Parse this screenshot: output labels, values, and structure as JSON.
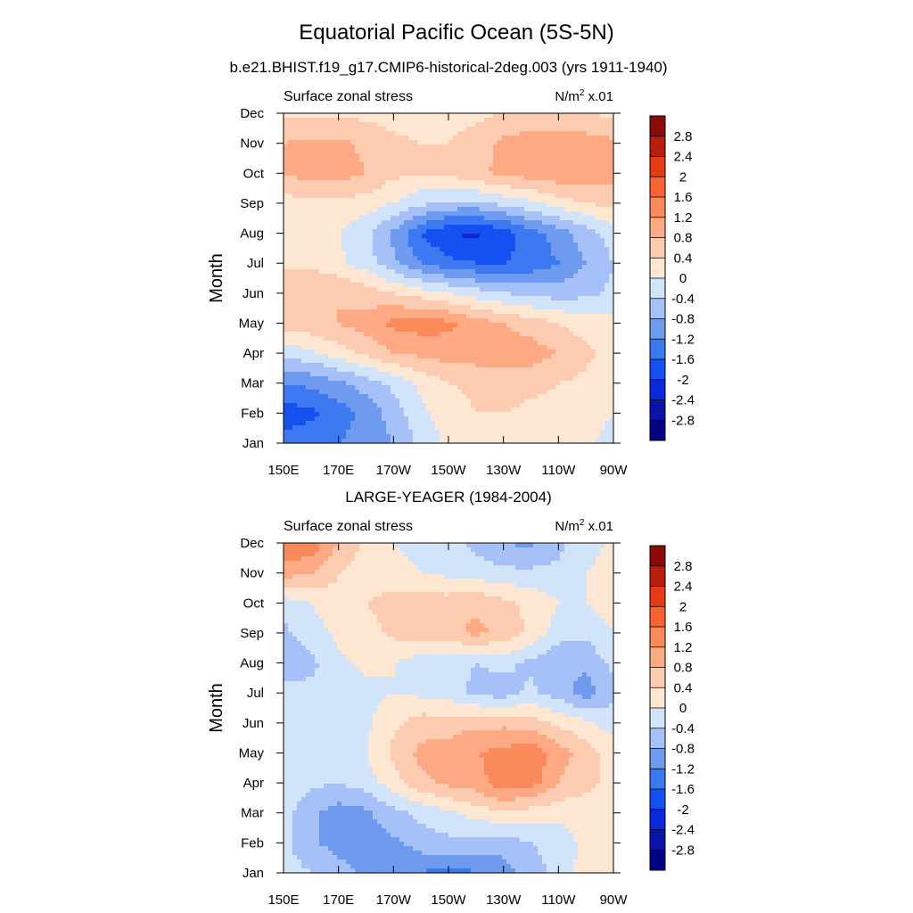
{
  "figure": {
    "title": "Equatorial Pacific Ocean (5S-5N)",
    "units_prefix": "N/m",
    "units_sup": "2",
    "units_suffix": " x.01"
  },
  "colormap": {
    "levels": [
      "-2.8",
      "-2.4",
      "-2",
      "-1.6",
      "-1.2",
      "-0.8",
      "-0.4",
      "0",
      "0.4",
      "0.8",
      "1.2",
      "1.6",
      "2",
      "2.4",
      "2.8"
    ],
    "colors": [
      "#000080",
      "#0a14a8",
      "#0a28d8",
      "#1550f0",
      "#3c78f0",
      "#6e9bf0",
      "#a5c1f7",
      "#d2e4fa",
      "#fde6d2",
      "#fdccb0",
      "#fca984",
      "#fb8a5a",
      "#fa6432",
      "#e63c14",
      "#b91e0a",
      "#8c0a0a"
    ]
  },
  "chart_data": [
    {
      "type": "heatmap",
      "title": "b.e21.BHIST.f19_g17.CMIP6-historical-2deg.003 (yrs 1911-1940)",
      "left_label": "Surface zonal stress",
      "ylabel": "Month",
      "xlabel": "",
      "x_ticks": [
        "150E",
        "170E",
        "170W",
        "150W",
        "130W",
        "110W",
        "90W"
      ],
      "y_ticks": [
        "Jan",
        "Feb",
        "Mar",
        "Apr",
        "May",
        "Jun",
        "Jul",
        "Aug",
        "Sep",
        "Oct",
        "Nov",
        "Dec"
      ],
      "x_range": [
        150,
        270
      ],
      "y_range": [
        1,
        12
      ],
      "grid": [
        [
          -1.5,
          -1.3,
          -1.2,
          -1.0,
          -0.8,
          -0.3,
          0.1,
          0.3,
          0.3,
          0.3,
          0.2,
          0.1,
          -0.2
        ],
        [
          -1.8,
          -1.7,
          -1.4,
          -1.1,
          -0.6,
          -0.1,
          0.2,
          0.4,
          0.4,
          0.3,
          0.3,
          0.2,
          0.0
        ],
        [
          -1.2,
          -1.1,
          -0.9,
          -0.6,
          -0.3,
          0.1,
          0.4,
          0.5,
          0.6,
          0.5,
          0.4,
          0.3,
          0.1
        ],
        [
          -0.3,
          -0.1,
          0.2,
          0.5,
          0.8,
          0.9,
          1.0,
          1.0,
          1.0,
          1.0,
          0.8,
          0.5,
          0.2
        ],
        [
          0.6,
          0.7,
          0.8,
          1.0,
          1.3,
          1.4,
          1.3,
          1.0,
          0.8,
          0.6,
          0.4,
          0.2,
          0.1
        ],
        [
          0.7,
          0.8,
          0.8,
          0.6,
          0.4,
          0.2,
          0.0,
          -0.2,
          -0.4,
          -0.5,
          -0.6,
          -0.5,
          -0.3
        ],
        [
          0.3,
          0.3,
          0.1,
          -0.2,
          -0.7,
          -1.2,
          -1.5,
          -1.6,
          -1.6,
          -1.5,
          -1.2,
          -0.8,
          -0.4
        ],
        [
          0.2,
          0.1,
          0.0,
          -0.3,
          -0.9,
          -1.6,
          -2.0,
          -2.1,
          -1.8,
          -1.4,
          -1.0,
          -0.6,
          -0.2
        ],
        [
          0.2,
          0.3,
          0.3,
          0.2,
          0.0,
          -0.3,
          -0.5,
          -0.5,
          -0.3,
          -0.1,
          0.2,
          0.4,
          0.5
        ],
        [
          0.9,
          0.9,
          1.0,
          0.8,
          0.5,
          0.4,
          0.5,
          0.7,
          0.9,
          1.0,
          1.1,
          1.1,
          1.0
        ],
        [
          0.8,
          0.9,
          0.9,
          0.7,
          0.5,
          0.4,
          0.4,
          0.6,
          0.9,
          1.0,
          1.0,
          1.0,
          0.9
        ],
        [
          0.3,
          0.3,
          0.3,
          0.3,
          0.2,
          0.2,
          0.2,
          0.3,
          0.4,
          0.5,
          0.5,
          0.4,
          0.3
        ]
      ]
    },
    {
      "type": "heatmap",
      "title": "LARGE-YEAGER (1984-2004)",
      "left_label": "Surface zonal stress",
      "ylabel": "Month",
      "xlabel": "",
      "x_ticks": [
        "150E",
        "170E",
        "170W",
        "150W",
        "130W",
        "110W",
        "90W"
      ],
      "y_ticks": [
        "Jan",
        "Feb",
        "Mar",
        "Apr",
        "May",
        "Jun",
        "Jul",
        "Aug",
        "Sep",
        "Oct",
        "Nov",
        "Dec"
      ],
      "x_range": [
        150,
        270
      ],
      "y_range": [
        1,
        12
      ],
      "grid": [
        [
          -0.2,
          -0.4,
          -0.6,
          -0.9,
          -1.2,
          -1.2,
          -1.4,
          -1.2,
          -1.0,
          -0.6,
          -0.3,
          0.2,
          0.3
        ],
        [
          -0.3,
          -0.7,
          -1.0,
          -1.0,
          -0.9,
          -0.6,
          -0.5,
          -0.6,
          -0.6,
          -0.4,
          -0.2,
          0.1,
          0.2
        ],
        [
          -0.2,
          -0.7,
          -1.0,
          -0.9,
          -0.5,
          -0.3,
          -0.1,
          0.2,
          0.3,
          0.2,
          0.1,
          0.2,
          0.3
        ],
        [
          -0.1,
          -0.3,
          -0.4,
          -0.2,
          0.2,
          0.7,
          0.9,
          1.0,
          1.5,
          1.4,
          0.8,
          0.5,
          0.3
        ],
        [
          -0.1,
          -0.2,
          -0.3,
          0.0,
          0.5,
          0.9,
          1.0,
          1.2,
          1.3,
          1.5,
          1.0,
          0.6,
          0.2
        ],
        [
          -0.2,
          -0.2,
          -0.2,
          -0.1,
          0.3,
          0.6,
          0.6,
          0.7,
          0.7,
          0.6,
          0.3,
          0.1,
          -0.2
        ],
        [
          -0.3,
          -0.3,
          -0.2,
          -0.1,
          0.0,
          -0.1,
          -0.2,
          -0.5,
          -0.6,
          -0.3,
          -0.6,
          -1.0,
          -0.5
        ],
        [
          -0.6,
          -0.5,
          -0.1,
          0.1,
          0.0,
          -0.2,
          -0.3,
          -0.4,
          -0.3,
          -0.5,
          -0.8,
          -0.7,
          -0.3
        ],
        [
          -0.5,
          -0.2,
          0.1,
          0.2,
          0.5,
          0.6,
          0.7,
          0.9,
          0.7,
          0.3,
          -0.2,
          -0.3,
          0.0
        ],
        [
          -0.2,
          0.0,
          0.3,
          0.4,
          0.6,
          0.6,
          0.6,
          0.7,
          0.5,
          0.3,
          0.0,
          0.0,
          0.2
        ],
        [
          1.0,
          0.8,
          0.4,
          0.2,
          0.1,
          0.0,
          -0.1,
          -0.2,
          -0.3,
          -0.3,
          -0.3,
          0.0,
          0.2
        ],
        [
          1.6,
          1.5,
          0.8,
          0.3,
          0.0,
          -0.1,
          -0.2,
          -0.5,
          -0.8,
          -0.9,
          -0.5,
          -0.2,
          0.1
        ]
      ]
    }
  ]
}
